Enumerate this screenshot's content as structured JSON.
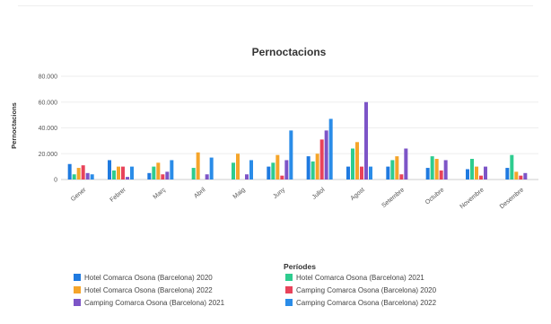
{
  "chart_data": {
    "type": "bar",
    "title": "Pernoctacions",
    "xlabel": "Períodes",
    "ylabel": "Pernoctacions",
    "ylim": [
      0,
      80000
    ],
    "yticks": [
      "80.000",
      "60.000",
      "40.000",
      "20.000",
      "0"
    ],
    "ytick_values": [
      80000,
      60000,
      40000,
      20000,
      0
    ],
    "grid": true,
    "legend_position": "bottom",
    "categories": [
      "Gener",
      "Febrer",
      "Març",
      "Abril",
      "Maig",
      "Juny",
      "Juliol",
      "Agost",
      "Setembre",
      "Octubre",
      "Novembre",
      "Desembre"
    ],
    "series": [
      {
        "name": "Hotel Comarca Osona (Barcelona) 2020",
        "color": "#1f7ae0",
        "values": [
          12000,
          15000,
          5000,
          0,
          0,
          10000,
          18000,
          10000,
          10000,
          9000,
          8000,
          9000
        ]
      },
      {
        "name": "Hotel Comarca Osona (Barcelona) 2021",
        "color": "#2ecc8f",
        "values": [
          4000,
          7000,
          10000,
          9000,
          13000,
          13000,
          14000,
          24000,
          15000,
          18000,
          16000,
          19000
        ]
      },
      {
        "name": "Hotel Comarca Osona (Barcelona) 2022",
        "color": "#f5a52a",
        "values": [
          9000,
          10000,
          13000,
          21000,
          20000,
          19000,
          20000,
          29000,
          18000,
          16000,
          10000,
          6000
        ]
      },
      {
        "name": "Camping Comarca Osona (Barcelona) 2020",
        "color": "#e8435a",
        "values": [
          11000,
          10000,
          4000,
          0,
          0,
          3000,
          31000,
          10000,
          4000,
          7000,
          3000,
          3000
        ]
      },
      {
        "name": "Camping Comarca Osona (Barcelona) 2021",
        "color": "#7d55c7",
        "values": [
          5000,
          2000,
          6000,
          4000,
          4000,
          15000,
          38000,
          60000,
          24000,
          15000,
          10000,
          5000
        ]
      },
      {
        "name": "Camping Comarca Osona (Barcelona) 2022",
        "color": "#2a8ce8",
        "values": [
          4000,
          10000,
          15000,
          17000,
          15000,
          38000,
          47000,
          10000,
          0,
          0,
          0,
          0
        ]
      }
    ]
  }
}
